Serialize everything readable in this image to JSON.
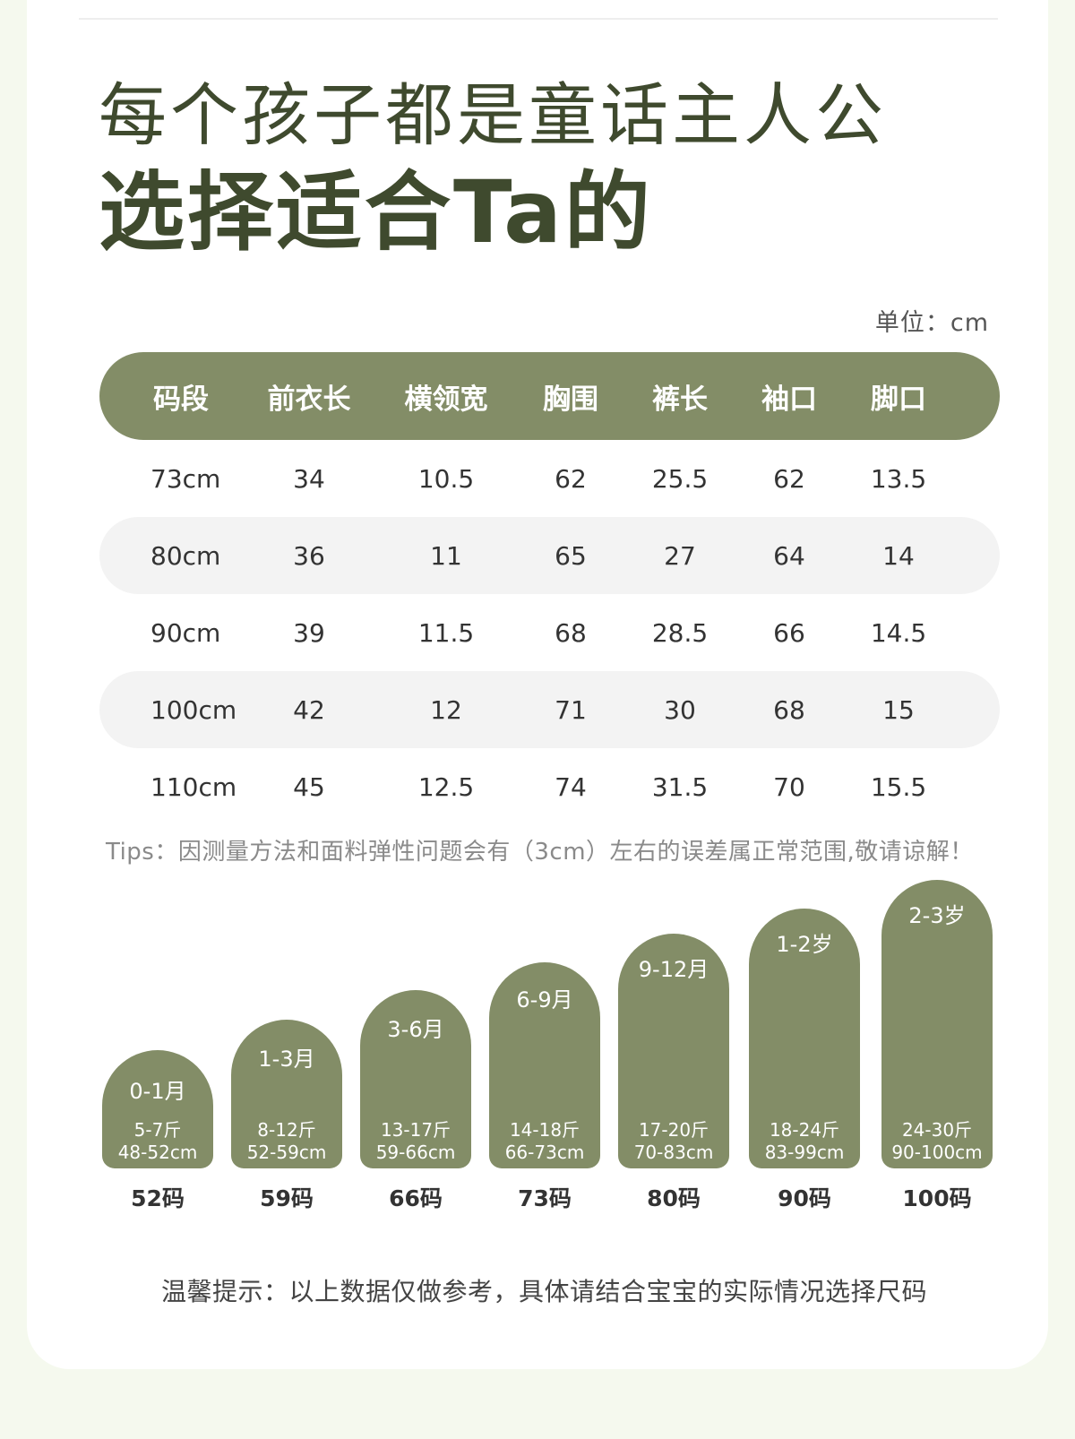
{
  "headline": {
    "line1": "每个孩子都是童话主人公",
    "line2": "选择适合Ta的"
  },
  "unit_note": "单位：cm",
  "size_table": {
    "headers": [
      "码段",
      "前衣长",
      "横领宽",
      "胸围",
      "裤长",
      "袖口",
      "脚口"
    ],
    "rows": [
      [
        "73cm",
        "34",
        "10.5",
        "62",
        "25.5",
        "62",
        "13.5"
      ],
      [
        "80cm",
        "36",
        "11",
        "65",
        "27",
        "64",
        "14"
      ],
      [
        "90cm",
        "39",
        "11.5",
        "68",
        "28.5",
        "66",
        "14.5"
      ],
      [
        "100cm",
        "42",
        "12",
        "71",
        "30",
        "68",
        "15"
      ],
      [
        "110cm",
        "45",
        "12.5",
        "74",
        "31.5",
        "70",
        "15.5"
      ]
    ]
  },
  "tips": "Tips：因测量方法和面料弹性问题会有（3cm）左右的误差属正常范围,敬请谅解！",
  "age_guide": [
    {
      "age": "0-1月",
      "weight": "5-7斤",
      "height": "48-52cm",
      "size": "52码"
    },
    {
      "age": "1-3月",
      "weight": "8-12斤",
      "height": "52-59cm",
      "size": "59码"
    },
    {
      "age": "3-6月",
      "weight": "13-17斤",
      "height": "59-66cm",
      "size": "66码"
    },
    {
      "age": "6-9月",
      "weight": "14-18斤",
      "height": "66-73cm",
      "size": "73码"
    },
    {
      "age": "9-12月",
      "weight": "17-20斤",
      "height": "70-83cm",
      "size": "80码"
    },
    {
      "age": "1-2岁",
      "weight": "18-24斤",
      "height": "83-99cm",
      "size": "90码"
    },
    {
      "age": "2-3岁",
      "weight": "24-30斤",
      "height": "90-100cm",
      "size": "100码"
    }
  ],
  "reminder": "温馨提示：以上数据仅做参考，具体请结合宝宝的实际情况选择尺码",
  "colors": {
    "accent": "#838d67",
    "headline": "#3f4a2e",
    "row_alt": "#f3f3f3",
    "page_bg": "#f5f9ee"
  }
}
